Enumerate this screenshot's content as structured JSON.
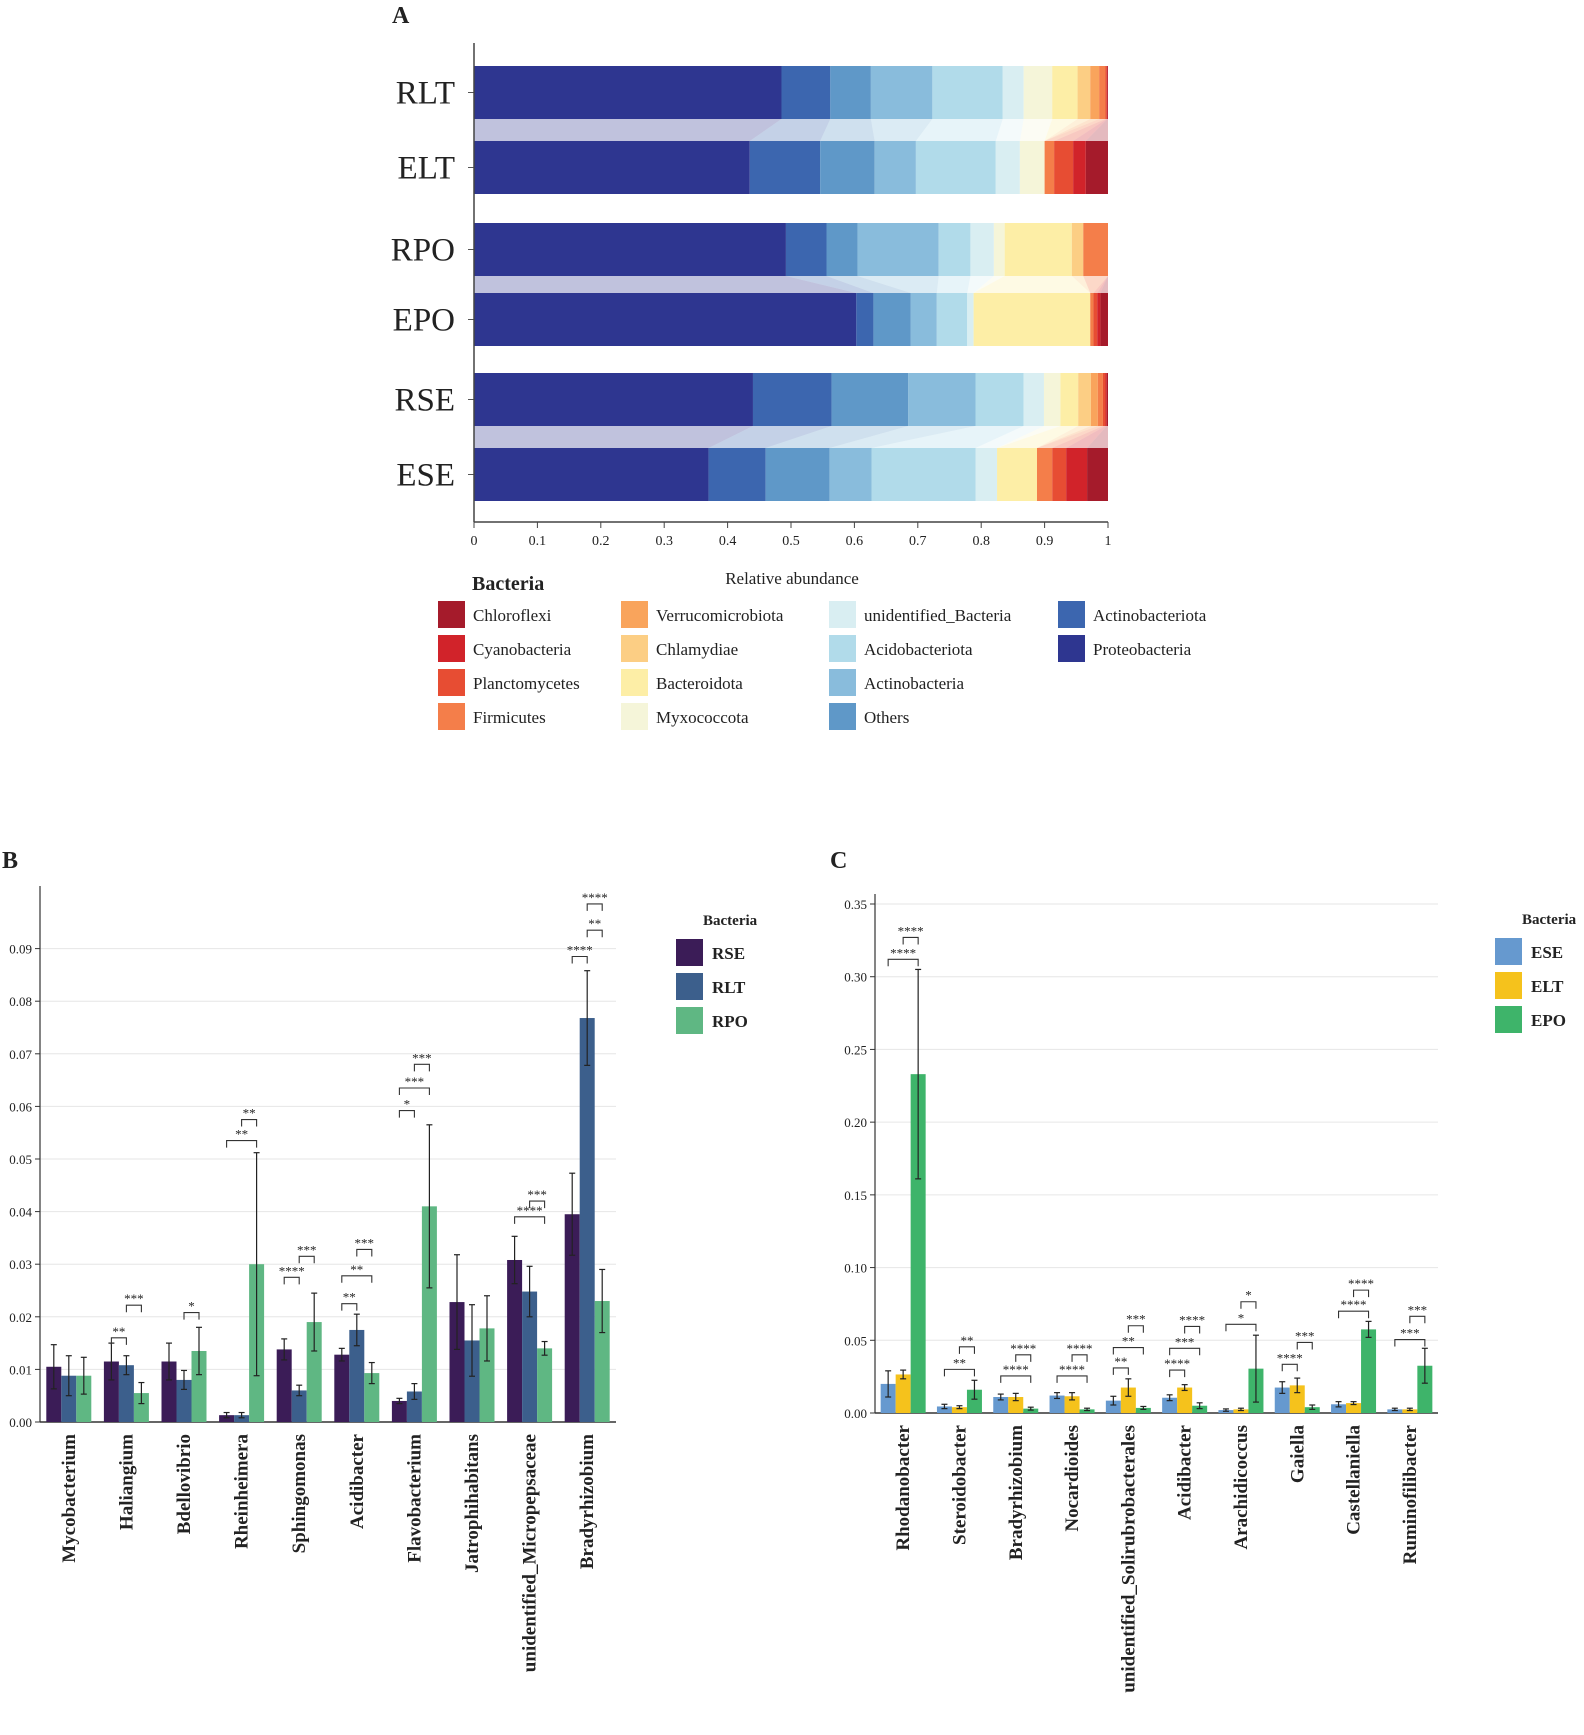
{
  "figure": {
    "panel_labels": [
      "A",
      "B",
      "C"
    ]
  },
  "chart_data": [
    {
      "panel": "A",
      "type": "bar",
      "orientation": "horizontal-stacked",
      "xlabel": "Relative abundance",
      "xlim": [
        0,
        1
      ],
      "xticks": [
        "0",
        "0.1",
        "0.2",
        "0.3",
        "0.4",
        "0.5",
        "0.6",
        "0.7",
        "0.8",
        "0.9",
        "1"
      ],
      "legend_title": "Bacteria",
      "legend": [
        {
          "name": "Chloroflexi",
          "color": "#a51b2b"
        },
        {
          "name": "Cyanobacteria",
          "color": "#d1232a"
        },
        {
          "name": "Planctomycetes",
          "color": "#e74d33"
        },
        {
          "name": "Firmicutes",
          "color": "#f47e4a"
        },
        {
          "name": "Verrucomicrobiota",
          "color": "#f9a45c"
        },
        {
          "name": "Chlamydiae",
          "color": "#fcce84"
        },
        {
          "name": "Bacteroidota",
          "color": "#fdeea6"
        },
        {
          "name": "Myxococcota",
          "color": "#f5f5d9"
        },
        {
          "name": "unidentified_Bacteria",
          "color": "#d9eef2"
        },
        {
          "name": "Acidobacteriota",
          "color": "#b1dbea"
        },
        {
          "name": "Actinobacteria",
          "color": "#89bcdc"
        },
        {
          "name": "Others",
          "color": "#5f98c8"
        },
        {
          "name": "Actinobacteriota",
          "color": "#3c66af"
        },
        {
          "name": "Proteobacteria",
          "color": "#2e3690"
        }
      ],
      "stack_order": [
        "Proteobacteria",
        "Actinobacteriota",
        "Others",
        "Actinobacteria",
        "Acidobacteriota",
        "unidentified_Bacteria",
        "Myxococcota",
        "Bacteroidota",
        "Chlamydiae",
        "Verrucomicrobiota",
        "Firmicutes",
        "Planctomycetes",
        "Cyanobacteria",
        "Chloroflexi"
      ],
      "categories": [
        "RLT",
        "ELT",
        "RPO",
        "EPO",
        "RSE",
        "ESE"
      ],
      "values": {
        "RLT": [
          0.485,
          0.077,
          0.064,
          0.097,
          0.111,
          0.033,
          0.045,
          0.04,
          0.02,
          0.014,
          0.01,
          0.002,
          0.001,
          0.001
        ],
        "ELT": [
          0.435,
          0.111,
          0.086,
          0.065,
          0.126,
          0.038,
          0.039,
          0.0,
          0.0,
          0.0,
          0.015,
          0.03,
          0.02,
          0.035
        ],
        "RPO": [
          0.492,
          0.064,
          0.049,
          0.128,
          0.05,
          0.037,
          0.017,
          0.106,
          0.018,
          0.0,
          0.039,
          0.0,
          0.0,
          0.0
        ],
        "EPO": [
          0.603,
          0.027,
          0.059,
          0.041,
          0.048,
          0.01,
          0.0,
          0.184,
          0.0,
          0.0,
          0.005,
          0.006,
          0.005,
          0.012
        ],
        "RSE": [
          0.44,
          0.124,
          0.121,
          0.106,
          0.076,
          0.032,
          0.026,
          0.028,
          0.02,
          0.011,
          0.008,
          0.004,
          0.002,
          0.002
        ],
        "ESE": [
          0.37,
          0.09,
          0.101,
          0.066,
          0.164,
          0.034,
          0.0,
          0.063,
          0.0,
          0.0,
          0.024,
          0.022,
          0.033,
          0.033
        ]
      }
    },
    {
      "panel": "B",
      "type": "bar",
      "ylim": [
        0,
        0.1
      ],
      "yticks": [
        "0.00",
        "0.01",
        "0.02",
        "0.03",
        "0.04",
        "0.05",
        "0.06",
        "0.07",
        "0.08",
        "0.09"
      ],
      "legend_title": "Bacteria",
      "series": [
        {
          "name": "RSE",
          "color": "#3b1c57",
          "values": [
            0.0105,
            0.0115,
            0.0115,
            0.0013,
            0.0138,
            0.0128,
            0.004,
            0.0228,
            0.0308,
            0.0395
          ],
          "errors": [
            0.0042,
            0.0035,
            0.0035,
            0.0005,
            0.002,
            0.0012,
            0.0005,
            0.009,
            0.0045,
            0.0078
          ]
        },
        {
          "name": "RLT",
          "color": "#3c5f8c",
          "values": [
            0.0088,
            0.0108,
            0.008,
            0.0013,
            0.006,
            0.0175,
            0.0058,
            0.0155,
            0.0248,
            0.0768
          ],
          "errors": [
            0.0038,
            0.0018,
            0.0018,
            0.0005,
            0.001,
            0.003,
            0.0015,
            0.0068,
            0.0048,
            0.009
          ]
        },
        {
          "name": "RPO",
          "color": "#5fb783",
          "values": [
            0.0088,
            0.0055,
            0.0135,
            0.03,
            0.019,
            0.0093,
            0.041,
            0.0178,
            0.014,
            0.023
          ],
          "errors": [
            0.0035,
            0.002,
            0.0045,
            0.0212,
            0.0055,
            0.002,
            0.0155,
            0.0062,
            0.0013,
            0.006
          ]
        }
      ],
      "categories": [
        "Mycobacterium",
        "Haliangium",
        "Bdellovibrio",
        "Rheinheimera",
        "Sphingomonas",
        "Acidibacter",
        "Flavobacterium",
        "Jatrophihabitans",
        "unidentified_Micropepsaceae",
        "Bradyrhizobium"
      ],
      "significance": [
        {
          "cat": 1,
          "a": 0,
          "b": 1,
          "y": 0.016,
          "label": "**"
        },
        {
          "cat": 1,
          "a": 1,
          "b": 2,
          "y": 0.0222,
          "label": "***"
        },
        {
          "cat": 2,
          "a": 1,
          "b": 2,
          "y": 0.0208,
          "label": "*"
        },
        {
          "cat": 3,
          "a": 0,
          "b": 2,
          "y": 0.0535,
          "label": "**"
        },
        {
          "cat": 3,
          "a": 1,
          "b": 2,
          "y": 0.0575,
          "label": "**"
        },
        {
          "cat": 4,
          "a": 0,
          "b": 1,
          "y": 0.0275,
          "label": "****"
        },
        {
          "cat": 4,
          "a": 1,
          "b": 2,
          "y": 0.0315,
          "label": "***"
        },
        {
          "cat": 5,
          "a": 0,
          "b": 1,
          "y": 0.0225,
          "label": "**"
        },
        {
          "cat": 5,
          "a": 0,
          "b": 2,
          "y": 0.0278,
          "label": "**"
        },
        {
          "cat": 5,
          "a": 1,
          "b": 2,
          "y": 0.0328,
          "label": "***"
        },
        {
          "cat": 6,
          "a": 0,
          "b": 1,
          "y": 0.0592,
          "label": "*"
        },
        {
          "cat": 6,
          "a": 0,
          "b": 2,
          "y": 0.0635,
          "label": "***"
        },
        {
          "cat": 6,
          "a": 1,
          "b": 2,
          "y": 0.068,
          "label": "***"
        },
        {
          "cat": 8,
          "a": 0,
          "b": 2,
          "y": 0.039,
          "label": "****"
        },
        {
          "cat": 8,
          "a": 1,
          "b": 2,
          "y": 0.042,
          "label": "***"
        },
        {
          "cat": 9,
          "a": 0,
          "b": 1,
          "y": 0.0885,
          "label": "****"
        },
        {
          "cat": 9,
          "a": 1,
          "b": 2,
          "y": 0.0935,
          "label": "**"
        },
        {
          "cat": 9,
          "a": 1,
          "b": 2,
          "y": 0.0985,
          "label": "****"
        }
      ]
    },
    {
      "panel": "C",
      "type": "bar",
      "ylim": [
        0,
        0.35
      ],
      "yticks": [
        "0.00",
        "0.05",
        "0.10",
        "0.15",
        "0.20",
        "0.25",
        "0.30",
        "0.35"
      ],
      "legend_title": "Bacteria",
      "series": [
        {
          "name": "ESE",
          "color": "#6699cf",
          "values": [
            0.02,
            0.0045,
            0.011,
            0.012,
            0.0085,
            0.0105,
            0.002,
            0.0175,
            0.006,
            0.0025
          ],
          "errors": [
            0.009,
            0.0015,
            0.002,
            0.002,
            0.003,
            0.002,
            0.0008,
            0.004,
            0.0018,
            0.0008
          ]
        },
        {
          "name": "ELT",
          "color": "#f5c21c",
          "values": [
            0.0265,
            0.004,
            0.011,
            0.0115,
            0.0175,
            0.0175,
            0.0025,
            0.019,
            0.0068,
            0.0025
          ],
          "errors": [
            0.003,
            0.001,
            0.0025,
            0.0025,
            0.006,
            0.002,
            0.0008,
            0.005,
            0.001,
            0.0008
          ]
        },
        {
          "name": "EPO",
          "color": "#3eb46a",
          "values": [
            0.233,
            0.016,
            0.003,
            0.0025,
            0.0035,
            0.005,
            0.0305,
            0.004,
            0.0575,
            0.0325
          ],
          "errors": [
            0.072,
            0.0065,
            0.001,
            0.0008,
            0.001,
            0.002,
            0.023,
            0.0015,
            0.0055,
            0.012
          ]
        }
      ],
      "categories": [
        "Rhodanobacter",
        "Steroidobacter",
        "Bradyrhizobium",
        "Nocardioides",
        "unidentified_Solirubrobacterales",
        "Acidibacter",
        "Arachidicoccus",
        "Gaiella",
        "Castellaniella",
        "Ruminofilibacter"
      ],
      "significance": [
        {
          "cat": 0,
          "a": 0,
          "b": 2,
          "y": 0.312,
          "label": "****"
        },
        {
          "cat": 0,
          "a": 1,
          "b": 2,
          "y": 0.327,
          "label": "****"
        },
        {
          "cat": 1,
          "a": 0,
          "b": 2,
          "y": 0.03,
          "label": "**"
        },
        {
          "cat": 1,
          "a": 1,
          "b": 2,
          "y": 0.0455,
          "label": "**"
        },
        {
          "cat": 2,
          "a": 0,
          "b": 2,
          "y": 0.0255,
          "label": "****"
        },
        {
          "cat": 2,
          "a": 1,
          "b": 2,
          "y": 0.04,
          "label": "****"
        },
        {
          "cat": 3,
          "a": 0,
          "b": 2,
          "y": 0.0255,
          "label": "****"
        },
        {
          "cat": 3,
          "a": 1,
          "b": 2,
          "y": 0.04,
          "label": "****"
        },
        {
          "cat": 4,
          "a": 0,
          "b": 1,
          "y": 0.031,
          "label": "**"
        },
        {
          "cat": 4,
          "a": 0,
          "b": 2,
          "y": 0.045,
          "label": "**"
        },
        {
          "cat": 4,
          "a": 1,
          "b": 2,
          "y": 0.06,
          "label": "***"
        },
        {
          "cat": 5,
          "a": 0,
          "b": 1,
          "y": 0.0295,
          "label": "****"
        },
        {
          "cat": 5,
          "a": 0,
          "b": 2,
          "y": 0.0445,
          "label": "***"
        },
        {
          "cat": 5,
          "a": 1,
          "b": 2,
          "y": 0.0595,
          "label": "****"
        },
        {
          "cat": 6,
          "a": 0,
          "b": 2,
          "y": 0.061,
          "label": "*"
        },
        {
          "cat": 6,
          "a": 1,
          "b": 2,
          "y": 0.0765,
          "label": "*"
        },
        {
          "cat": 7,
          "a": 0,
          "b": 1,
          "y": 0.0335,
          "label": "****"
        },
        {
          "cat": 7,
          "a": 1,
          "b": 2,
          "y": 0.0485,
          "label": "***"
        },
        {
          "cat": 8,
          "a": 0,
          "b": 2,
          "y": 0.07,
          "label": "****"
        },
        {
          "cat": 8,
          "a": 1,
          "b": 2,
          "y": 0.0845,
          "label": "****"
        },
        {
          "cat": 9,
          "a": 0,
          "b": 2,
          "y": 0.0505,
          "label": "***"
        },
        {
          "cat": 9,
          "a": 1,
          "b": 2,
          "y": 0.0665,
          "label": "***"
        }
      ]
    }
  ]
}
